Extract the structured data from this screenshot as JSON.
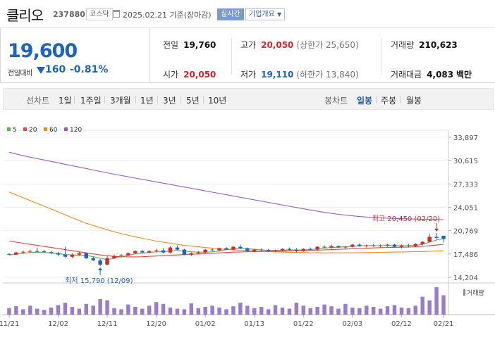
{
  "stock": {
    "name": "클리오",
    "code": "237880",
    "market": "코스닥",
    "date": "2025.02.21 기준(장마감)",
    "realtime_label": "실시간",
    "company_info_label": "기업개요"
  },
  "price": {
    "current": "19,600",
    "change_label": "전일대비",
    "change": "160",
    "change_pct": "-0.81%"
  },
  "stats": {
    "prev_close": {
      "label": "전일",
      "value": "19,760"
    },
    "high": {
      "label": "고가",
      "value": "20,050",
      "extra": "(상한가 25,650)"
    },
    "volume": {
      "label": "거래량",
      "value": "210,623"
    },
    "open": {
      "label": "시가",
      "value": "20,050"
    },
    "low": {
      "label": "저가",
      "value": "19,110",
      "extra": "(하한가 13,840)"
    },
    "amount": {
      "label": "거래대금",
      "value": "4,083",
      "unit": "백만"
    }
  },
  "periods": {
    "line_label": "선차트",
    "line_items": [
      "1일",
      "1주일",
      "3개월",
      "1년",
      "3년",
      "5년",
      "10년"
    ],
    "candle_label": "봉차트",
    "candle_items": [
      "일봉",
      "주봉",
      "월봉"
    ],
    "candle_selected": "일봉"
  },
  "colors": {
    "up": "#d6252c",
    "down": "#1d63c4",
    "ma5": "#5bb24a",
    "ma20": "#e04a3c",
    "ma60": "#f08a1c",
    "ma120": "#9a5ec4",
    "volume": "#9a7cc9"
  },
  "chart_data": {
    "type": "candlestick",
    "legend": [
      {
        "name": "5",
        "color": "#5bb24a"
      },
      {
        "name": "20",
        "color": "#e04a3c"
      },
      {
        "name": "60",
        "color": "#f08a1c"
      },
      {
        "name": "120",
        "color": "#9a5ec4"
      }
    ],
    "y_ticks": [
      "33,897",
      "30,615",
      "27,333",
      "24,051",
      "20,769",
      "17,486",
      "14,204"
    ],
    "ylim": [
      14204,
      33897
    ],
    "x_labels": [
      "11/21",
      "12/02",
      "12/11",
      "12/20",
      "01/02",
      "01/13",
      "01/22",
      "02/03",
      "02/12",
      "02/21"
    ],
    "x_label_index": [
      0,
      7,
      14,
      21,
      28,
      35,
      42,
      49,
      56,
      62
    ],
    "volume_label": "거래량",
    "annotations": {
      "high": "최고 20,450 (02/20)",
      "low": "최저 15,790 (12/09)"
    },
    "candles": [
      [
        17500,
        17600,
        17300,
        17400
      ],
      [
        17400,
        17800,
        17350,
        17700
      ],
      [
        17700,
        18000,
        17500,
        17800
      ],
      [
        17800,
        18100,
        17600,
        17900
      ],
      [
        17900,
        18400,
        17700,
        17850
      ],
      [
        17850,
        18100,
        17650,
        17750
      ],
      [
        17750,
        17900,
        17500,
        17600
      ],
      [
        17600,
        17800,
        17200,
        17400
      ],
      [
        17400,
        18500,
        17000,
        17100
      ],
      [
        17100,
        17600,
        16900,
        17400
      ],
      [
        17400,
        17800,
        17200,
        17600
      ],
      [
        17600,
        17700,
        16800,
        16900
      ],
      [
        16900,
        17100,
        16500,
        16600
      ],
      [
        16600,
        16800,
        15790,
        16000
      ],
      [
        16000,
        17200,
        15900,
        16900
      ],
      [
        16900,
        17400,
        16800,
        17200
      ],
      [
        17200,
        17500,
        17000,
        17300
      ],
      [
        17300,
        17700,
        17200,
        17600
      ],
      [
        17600,
        18000,
        17500,
        17900
      ],
      [
        17900,
        18100,
        17600,
        17700
      ],
      [
        17700,
        18000,
        17600,
        17900
      ],
      [
        17900,
        18200,
        17700,
        18000
      ],
      [
        18000,
        18300,
        17600,
        17700
      ],
      [
        17700,
        18600,
        17600,
        18400
      ],
      [
        18400,
        18700,
        18000,
        18100
      ],
      [
        18100,
        18200,
        17300,
        17400
      ],
      [
        17400,
        17700,
        17200,
        17600
      ],
      [
        17600,
        17900,
        17500,
        17700
      ],
      [
        17700,
        18200,
        17600,
        18100
      ],
      [
        18100,
        18300,
        17900,
        18000
      ],
      [
        18000,
        18400,
        17900,
        18300
      ],
      [
        18300,
        18500,
        18000,
        18100
      ],
      [
        18100,
        18600,
        18000,
        18500
      ],
      [
        18500,
        18800,
        18200,
        18300
      ],
      [
        18300,
        18400,
        17800,
        17900
      ],
      [
        17900,
        18200,
        17800,
        18100
      ],
      [
        18100,
        18300,
        17900,
        18000
      ],
      [
        18000,
        18200,
        17800,
        17900
      ],
      [
        17900,
        18100,
        17800,
        18000
      ],
      [
        18000,
        18300,
        17900,
        18200
      ],
      [
        18200,
        18400,
        18000,
        18100
      ],
      [
        18100,
        18300,
        17700,
        17900
      ],
      [
        17900,
        18300,
        17800,
        18200
      ],
      [
        18200,
        18400,
        18000,
        18100
      ],
      [
        18100,
        18600,
        18000,
        18500
      ],
      [
        18500,
        18700,
        18300,
        18400
      ],
      [
        18400,
        18800,
        18200,
        18600
      ],
      [
        18600,
        18700,
        18300,
        18400
      ],
      [
        18400,
        18600,
        18200,
        18500
      ],
      [
        18500,
        18900,
        18400,
        18800
      ],
      [
        18800,
        19000,
        18500,
        18600
      ],
      [
        18600,
        18800,
        18400,
        18700
      ],
      [
        18700,
        18900,
        18500,
        18600
      ],
      [
        18600,
        18800,
        18400,
        18700
      ],
      [
        18700,
        18900,
        18500,
        18800
      ],
      [
        18800,
        18900,
        18400,
        18500
      ],
      [
        18500,
        18800,
        18300,
        18700
      ],
      [
        18700,
        18900,
        18400,
        18600
      ],
      [
        18600,
        19000,
        18500,
        18900
      ],
      [
        18900,
        19300,
        18700,
        19200
      ],
      [
        19200,
        20300,
        19100,
        19900
      ],
      [
        19900,
        20450,
        19500,
        19760
      ],
      [
        20050,
        20050,
        19110,
        19600
      ]
    ],
    "volume": [
      22,
      28,
      18,
      30,
      20,
      16,
      24,
      32,
      40,
      26,
      20,
      36,
      30,
      52,
      48,
      22,
      18,
      34,
      26,
      20,
      30,
      42,
      36,
      24,
      20,
      18,
      38,
      22,
      26,
      30,
      24,
      18,
      28,
      40,
      30,
      22,
      26,
      18,
      32,
      24,
      20,
      40,
      30,
      22,
      26,
      34,
      28,
      20,
      36,
      24,
      22,
      30,
      26,
      20,
      28,
      32,
      24,
      22,
      30,
      60,
      48,
      92,
      65
    ],
    "ma5": [
      17350,
      17450,
      17600,
      17700,
      17750,
      17700,
      17650,
      17550,
      17400,
      17350,
      17300,
      17300,
      17100,
      16900,
      16700,
      16900,
      17100,
      17300,
      17500,
      17600,
      17700,
      17800,
      17800,
      17900,
      18000,
      17900,
      17800,
      17750,
      17750,
      17800,
      17900,
      18100,
      18200,
      18250,
      18200,
      18150,
      18050,
      18000,
      17980,
      18000,
      18050,
      18050,
      18050,
      18100,
      18200,
      18300,
      18400,
      18450,
      18500,
      18550,
      18650,
      18650,
      18650,
      18650,
      18700,
      18650,
      18650,
      18650,
      18700,
      18850,
      19150,
      19450,
      19650
    ],
    "ma20": [
      19300,
      19150,
      19000,
      18850,
      18700,
      18550,
      18400,
      18250,
      18100,
      17950,
      17800,
      17650,
      17500,
      17350,
      17250,
      17150,
      17100,
      17080,
      17080,
      17100,
      17150,
      17200,
      17250,
      17300,
      17350,
      17400,
      17450,
      17500,
      17550,
      17600,
      17650,
      17700,
      17750,
      17780,
      17800,
      17830,
      17850,
      17870,
      17890,
      17900,
      17920,
      17940,
      17960,
      17990,
      18020,
      18060,
      18100,
      18140,
      18180,
      18220,
      18260,
      18300,
      18340,
      18380,
      18400,
      18420,
      18440,
      18460,
      18500,
      18560,
      18650,
      18750,
      18850
    ],
    "ma60": [
      26200,
      25800,
      25400,
      25000,
      24600,
      24200,
      23800,
      23400,
      23000,
      22600,
      22200,
      21800,
      21500,
      21200,
      20900,
      20600,
      20350,
      20100,
      19900,
      19700,
      19500,
      19300,
      19150,
      19000,
      18850,
      18700,
      18600,
      18500,
      18400,
      18300,
      18200,
      18130,
      18060,
      18000,
      17950,
      17900,
      17860,
      17820,
      17790,
      17760,
      17730,
      17710,
      17690,
      17670,
      17660,
      17650,
      17650,
      17650,
      17660,
      17670,
      17680,
      17690,
      17700,
      17720,
      17740,
      17760,
      17780,
      17800,
      17820,
      17840,
      17870,
      17900,
      17930
    ],
    "ma120": [
      31800,
      31550,
      31300,
      31100,
      30900,
      30700,
      30500,
      30300,
      30100,
      29900,
      29700,
      29500,
      29300,
      29100,
      28900,
      28700,
      28520,
      28340,
      28160,
      27980,
      27800,
      27620,
      27440,
      27260,
      27080,
      26900,
      26720,
      26540,
      26360,
      26180,
      26000,
      25820,
      25640,
      25460,
      25280,
      25100,
      24920,
      24740,
      24560,
      24380,
      24200,
      24020,
      23840,
      23660,
      23500,
      23340,
      23200,
      23060,
      22950,
      22850,
      22750,
      22680,
      22620,
      22570,
      22530,
      22490,
      22460,
      22430,
      22400,
      22380,
      22360,
      22340,
      22320
    ]
  }
}
